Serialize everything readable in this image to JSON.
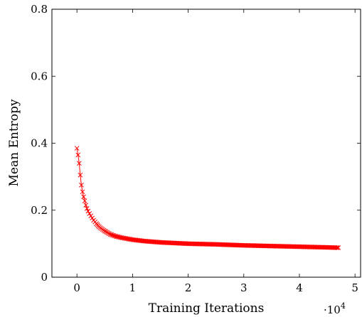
{
  "chart_data": {
    "type": "line",
    "xlabel": "Training Iterations",
    "ylabel": "Mean Entropy",
    "x_multiplier_label": "·10",
    "x_multiplier_exponent": "4",
    "xlim": [
      -0.45,
      5.1
    ],
    "ylim": [
      0,
      0.8
    ],
    "x_ticks": [
      0,
      1,
      2,
      3,
      4,
      5
    ],
    "x_tick_labels": [
      "0",
      "1",
      "2",
      "3",
      "4",
      "5"
    ],
    "y_ticks": [
      0,
      0.2,
      0.4,
      0.6,
      0.8
    ],
    "y_tick_labels": [
      "0",
      "0.2",
      "0.4",
      "0.6",
      "0.8"
    ],
    "grid": false,
    "series": [
      {
        "color": "#ff0000",
        "marker": "x",
        "x": [
          0.0,
          0.02,
          0.04,
          0.06,
          0.08,
          0.1,
          0.12,
          0.14,
          0.16,
          0.18,
          0.2,
          0.25,
          0.3,
          0.35,
          0.4,
          0.5,
          0.6,
          0.7,
          0.8,
          1.0,
          1.2,
          1.5,
          2.0,
          2.5,
          3.0,
          3.5,
          4.0,
          4.5,
          4.7
        ],
        "y": [
          0.385,
          0.365,
          0.34,
          0.305,
          0.275,
          0.255,
          0.24,
          0.228,
          0.215,
          0.205,
          0.197,
          0.183,
          0.17,
          0.16,
          0.15,
          0.138,
          0.128,
          0.122,
          0.118,
          0.112,
          0.108,
          0.104,
          0.1,
          0.098,
          0.095,
          0.093,
          0.091,
          0.089,
          0.088
        ]
      }
    ]
  }
}
